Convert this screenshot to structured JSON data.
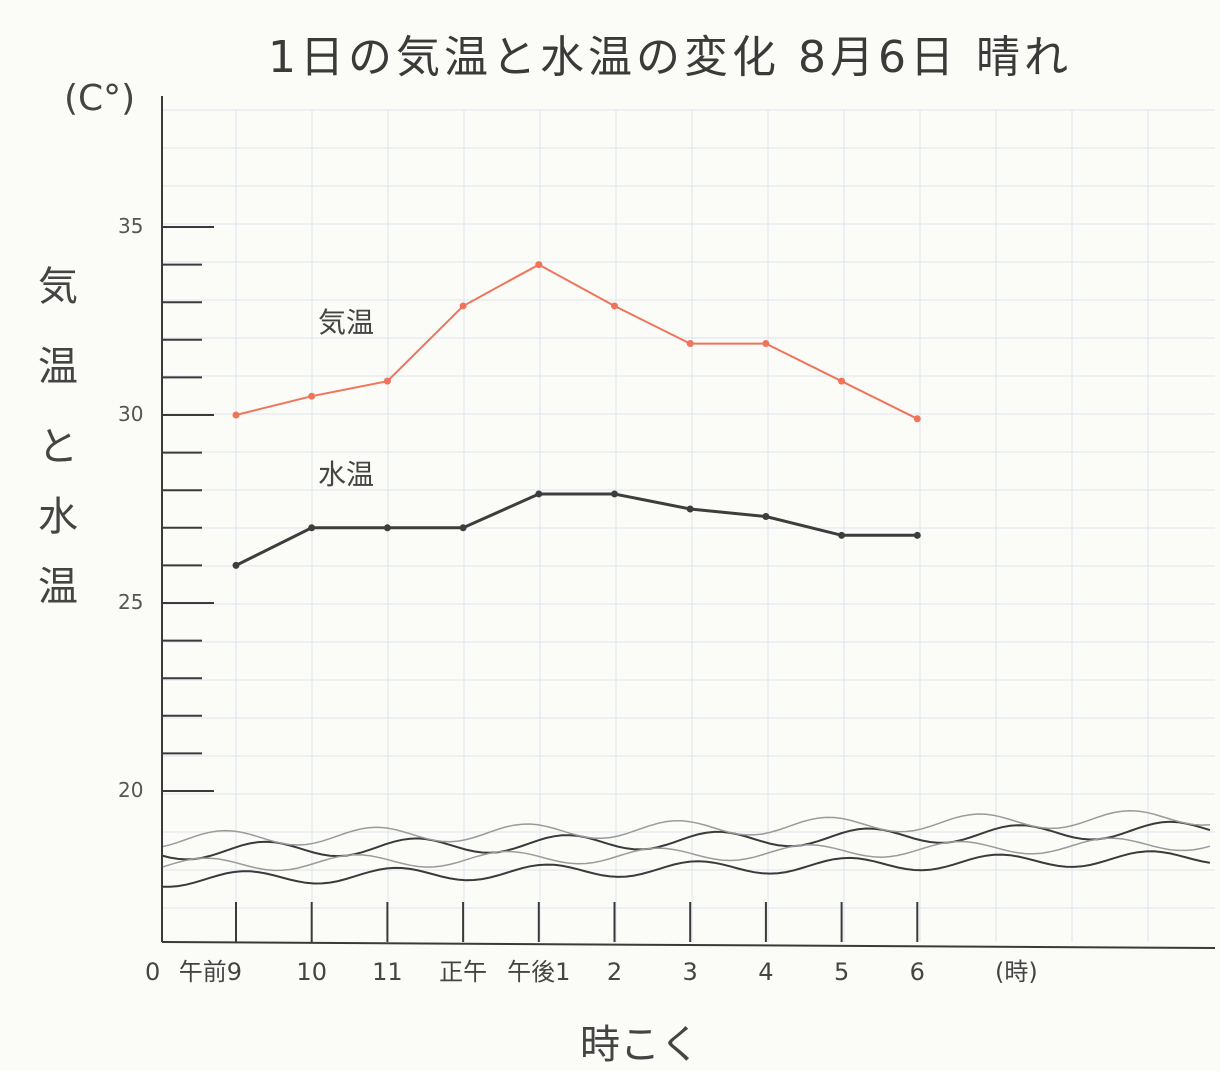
{
  "title": "1日の気温と水温の変化 8月6日 晴れ",
  "y_unit": "(C°)",
  "y_axis_label_chars": [
    "気",
    "温",
    "と",
    "水",
    "温"
  ],
  "x_axis_label": "時こく",
  "x_unit": "(時)",
  "x_origin_label": "0",
  "colors": {
    "air": "#f0745c",
    "water": "#3d3d3d",
    "grid": "#dde6ee",
    "axis": "#3a3a3a"
  },
  "chart_data": {
    "type": "line",
    "title": "1日の気温と水温の変化 8月6日 晴れ",
    "xlabel": "時こく",
    "ylabel": "気温と水温",
    "categories": [
      "午前9",
      "10",
      "11",
      "正午",
      "午後1",
      "2",
      "3",
      "4",
      "5",
      "6"
    ],
    "y_ticks": [
      20,
      25,
      30,
      35
    ],
    "ylim": [
      16,
      38
    ],
    "axis_break": true,
    "grid": true,
    "series": [
      {
        "name": "気温",
        "color": "#f0745c",
        "values": [
          30,
          30.5,
          30.9,
          32.9,
          34,
          32.9,
          31.9,
          31.9,
          30.9,
          29.9
        ]
      },
      {
        "name": "水温",
        "color": "#3d3d3d",
        "values": [
          26,
          27,
          27,
          27,
          27.9,
          27.9,
          27.5,
          27.3,
          26.8,
          26.8
        ]
      }
    ]
  }
}
